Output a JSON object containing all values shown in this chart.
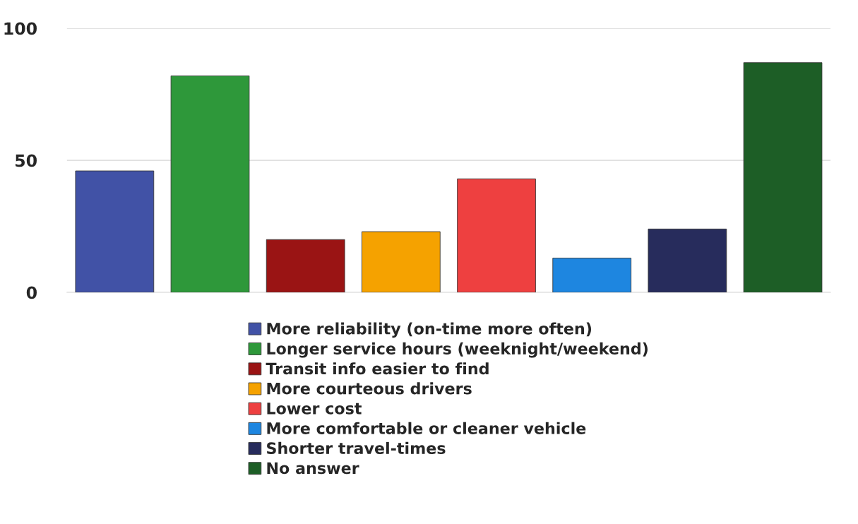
{
  "chart_data": {
    "type": "bar",
    "categories": [
      null,
      null,
      null,
      null,
      null,
      null,
      null,
      null
    ],
    "series": [
      {
        "name": "More reliability (on-time more often)",
        "color": "#4152a6",
        "values": [
          46,
          null,
          null,
          null,
          null,
          null,
          null,
          null
        ]
      },
      {
        "name": "Longer service hours (weeknight/weekend)",
        "color": "#2e983a",
        "values": [
          null,
          82,
          null,
          null,
          null,
          null,
          null,
          null
        ]
      },
      {
        "name": "Transit info easier to find",
        "color": "#9a1414",
        "values": [
          null,
          null,
          20,
          null,
          null,
          null,
          null,
          null
        ]
      },
      {
        "name": "More courteous drivers",
        "color": "#f5a200",
        "values": [
          null,
          null,
          null,
          23,
          null,
          null,
          null,
          null
        ]
      },
      {
        "name": "Lower cost",
        "color": "#ee4040",
        "values": [
          null,
          null,
          null,
          null,
          43,
          null,
          null,
          null
        ]
      },
      {
        "name": "More comfortable or cleaner vehicle",
        "color": "#1e86e0",
        "values": [
          null,
          null,
          null,
          null,
          null,
          13,
          null,
          null
        ]
      },
      {
        "name": "Shorter travel-times",
        "color": "#272c5c",
        "values": [
          null,
          null,
          null,
          null,
          null,
          null,
          24,
          null
        ]
      },
      {
        "name": "No answer",
        "color": "#1d5e26",
        "values": [
          null,
          null,
          null,
          null,
          null,
          null,
          null,
          87
        ]
      }
    ],
    "ylim": [
      0,
      100
    ],
    "yticks": [
      0,
      50,
      100
    ],
    "grid": "y",
    "legend": "bottom"
  }
}
